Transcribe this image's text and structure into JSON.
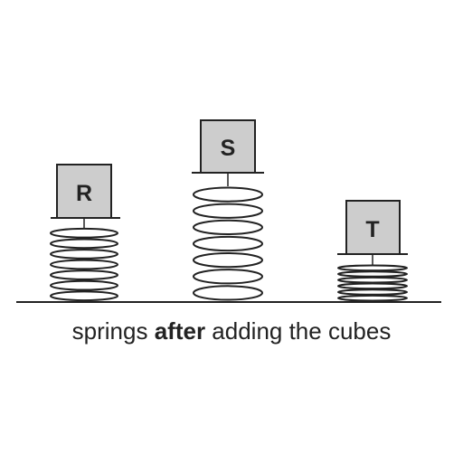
{
  "colors": {
    "cube_fill": "#cdcdcd",
    "stroke": "#222222"
  },
  "cubes": [
    {
      "label": "R",
      "spring_state": "partly compressed"
    },
    {
      "label": "S",
      "spring_state": "least compressed"
    },
    {
      "label": "T",
      "spring_state": "most compressed"
    }
  ],
  "caption": {
    "before": "springs ",
    "emphasis": "after",
    "after": " adding the cubes"
  }
}
